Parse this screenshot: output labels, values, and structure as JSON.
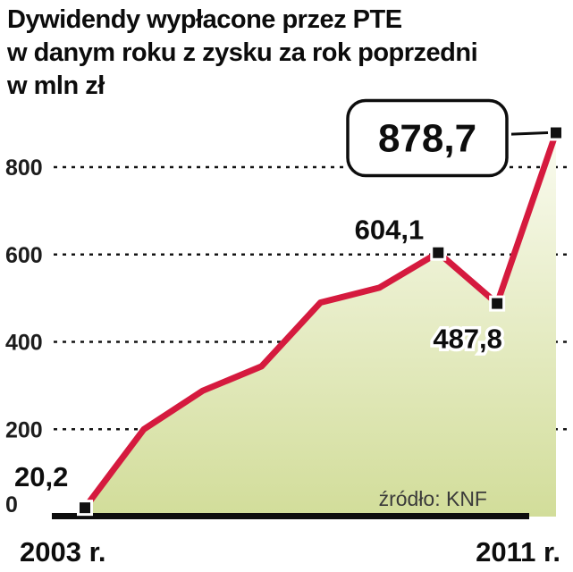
{
  "title": {
    "lines": [
      "Dywidendy wypłacone przez PTE",
      "w danym roku z zysku za rok poprzedni",
      "w mln zł"
    ]
  },
  "source_label": "źródło: KNF",
  "x_axis": {
    "left_label": "2003 r.",
    "right_label": "2011 r."
  },
  "chart_data": {
    "type": "area",
    "x": [
      2003,
      2004,
      2005,
      2006,
      2007,
      2008,
      2009,
      2010,
      2011
    ],
    "values": [
      20.2,
      200,
      288,
      344,
      490,
      524,
      604.1,
      487.8,
      878.7
    ],
    "yticks": [
      0,
      200,
      400,
      600,
      800
    ],
    "ylim": [
      0,
      900
    ],
    "grid": "dashed-horizontal",
    "legend": "none",
    "ylabel": "",
    "xlabel": "",
    "annotations": [
      {
        "index": 0,
        "text": "20,2",
        "placement": "above-left"
      },
      {
        "index": 6,
        "text": "604,1",
        "placement": "above"
      },
      {
        "index": 7,
        "text": "487,8",
        "placement": "below"
      },
      {
        "index": 8,
        "text": "878,7",
        "placement": "callout"
      }
    ],
    "colors": {
      "line": "#d51a3e",
      "area_top": "#fafbf0",
      "area_bottom": "#d2dd9a",
      "marker": "#111111",
      "marker_halo": "#ffffff",
      "grid": "#141414",
      "axis": "#0d0d0d",
      "label_text": "#0d0d0d"
    }
  }
}
